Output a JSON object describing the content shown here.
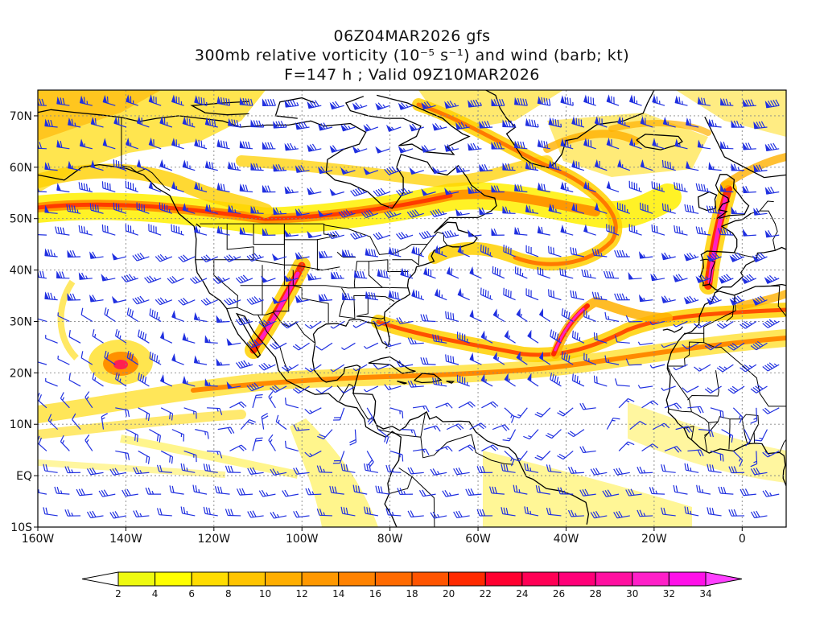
{
  "title": {
    "line1": "06Z04MAR2026 gfs",
    "line2": "300mb relative vorticity (10⁻⁵ s⁻¹) and wind (barb; kt)",
    "line3": "F=147 h ; Valid 09Z10MAR2026"
  },
  "map": {
    "lon_range": [
      -160,
      10
    ],
    "lat_range": [
      -10,
      75
    ],
    "lon_ticks": [
      {
        "value": -160,
        "label": "160W"
      },
      {
        "value": -140,
        "label": "140W"
      },
      {
        "value": -120,
        "label": "120W"
      },
      {
        "value": -100,
        "label": "100W"
      },
      {
        "value": -80,
        "label": "80W"
      },
      {
        "value": -60,
        "label": "60W"
      },
      {
        "value": -40,
        "label": "40W"
      },
      {
        "value": -20,
        "label": "20W"
      },
      {
        "value": 0,
        "label": "0"
      }
    ],
    "lat_ticks": [
      {
        "value": 70,
        "label": "70N"
      },
      {
        "value": 60,
        "label": "60N"
      },
      {
        "value": 50,
        "label": "50N"
      },
      {
        "value": 40,
        "label": "40N"
      },
      {
        "value": 30,
        "label": "30N"
      },
      {
        "value": 20,
        "label": "20N"
      },
      {
        "value": 10,
        "label": "10N"
      },
      {
        "value": 0,
        "label": "EQ"
      },
      {
        "value": -10,
        "label": "10S"
      }
    ],
    "barb_color": "#2030e0"
  },
  "colorbar": {
    "levels": [
      "2",
      "4",
      "6",
      "8",
      "10",
      "12",
      "14",
      "16",
      "18",
      "20",
      "22",
      "24",
      "26",
      "28",
      "30",
      "32",
      "34"
    ],
    "colors": [
      "#eefa10",
      "#ffff00",
      "#ffdc00",
      "#ffc400",
      "#ffae00",
      "#ff9800",
      "#ff8200",
      "#ff6a00",
      "#ff5400",
      "#ff2a00",
      "#ff0030",
      "#ff0055",
      "#ff0078",
      "#ff10a0",
      "#ff20c8",
      "#ff10e8"
    ],
    "low_color": "#ffffff",
    "high_color": "#ff40ff"
  }
}
